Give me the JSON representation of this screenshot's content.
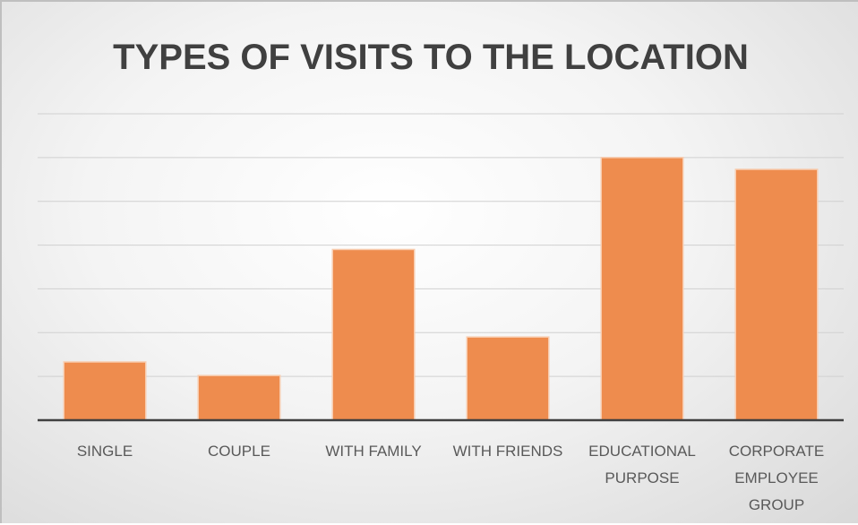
{
  "chart_data": {
    "type": "bar",
    "title": "TYPES OF VISITS TO THE LOCATION",
    "categories": [
      "SINGLE",
      "COUPLE",
      "WITH FAMILY",
      "WITH FRIENDS",
      "EDUCATIONAL PURPOSE",
      "CORPORATE EMPLOYEE GROUP"
    ],
    "values": [
      1.33,
      1.02,
      3.9,
      1.9,
      6.0,
      5.73
    ],
    "color": "#ee8c4e",
    "ylim": [
      0,
      7
    ],
    "yticks": [
      0,
      1,
      2,
      3,
      4,
      5,
      6,
      7
    ],
    "grid": true
  }
}
